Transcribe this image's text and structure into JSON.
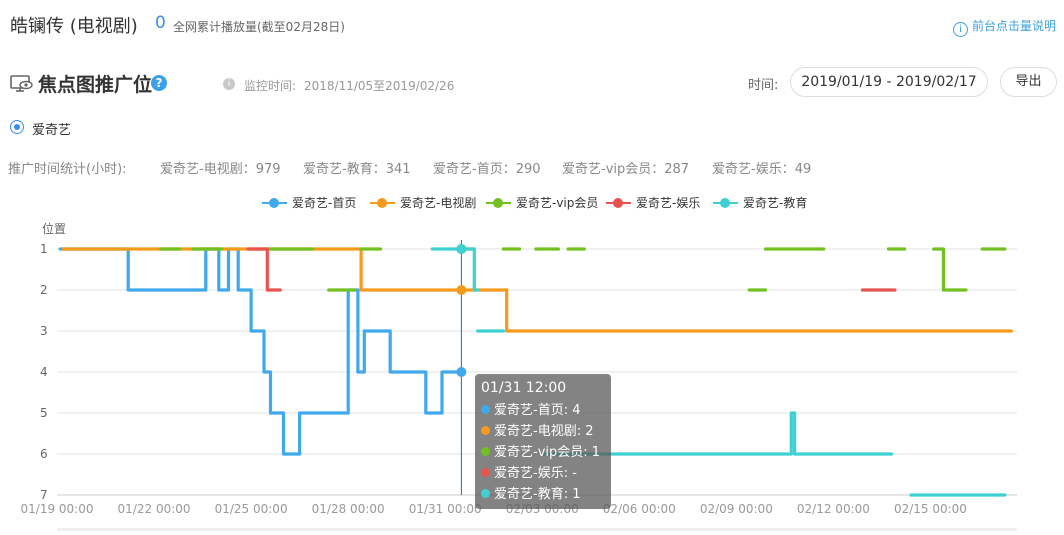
{
  "header": {
    "show_title": "皓镧传 (电视剧)",
    "play_count": "0",
    "play_label": "全网累计播放量(截至02月28日)",
    "explain_link": "前台点击量说明"
  },
  "section": {
    "title": "焦点图推广位",
    "help_icon": "question-icon",
    "monitor_label": "监控时间:",
    "monitor_value": "2018/11/05至2019/02/26",
    "time_label": "时间:",
    "date_range": "2019/01/19 - 2019/02/17",
    "export_label": "导出"
  },
  "platform": {
    "selected": "爱奇艺"
  },
  "stats": {
    "label": "推广时间统计(小时):",
    "items": [
      {
        "text": "爱奇艺-电视剧：979"
      },
      {
        "text": "爱奇艺-教育：341"
      },
      {
        "text": "爱奇艺-首页：290"
      },
      {
        "text": "爱奇艺-vip会员：287"
      },
      {
        "text": "爱奇艺-娱乐：49"
      }
    ]
  },
  "tooltip": {
    "title": "01/31 12:00",
    "rows": [
      {
        "text": "爱奇艺-首页: 4",
        "color": "#3fa9ec"
      },
      {
        "text": "爱奇艺-电视剧: 2",
        "color": "#f59a1b"
      },
      {
        "text": "爱奇艺-vip会员: 1",
        "color": "#73c021"
      },
      {
        "text": "爱奇艺-娱乐: -",
        "color": "#e8524f"
      },
      {
        "text": "爱奇艺-教育: 1",
        "color": "#3dd1d4"
      }
    ]
  },
  "chart_data": {
    "type": "line",
    "ylabel": "位置",
    "y_ticks": [
      "1",
      "2",
      "3",
      "4",
      "5",
      "6",
      "7"
    ],
    "ylim": [
      1,
      7
    ],
    "y_inverted": true,
    "x_ticks": [
      "01/19 00:00",
      "01/22 00:00",
      "01/25 00:00",
      "01/28 00:00",
      "01/31 00:00",
      "02/03 00:00",
      "02/06 00:00",
      "02/09 00:00",
      "02/12 00:00",
      "02/15 00:00"
    ],
    "x_unit": "days since 01/19 00:00",
    "xlim": [
      0,
      29.5
    ],
    "grid": "horizontal",
    "legend_position": "top",
    "hover_x": 12.5,
    "series": [
      {
        "name": "爱奇艺-首页",
        "color": "#3fa9ec",
        "segments": [
          [
            [
              0.1,
              1
            ],
            [
              2.2,
              1
            ],
            [
              2.2,
              2
            ],
            [
              4.6,
              2
            ],
            [
              4.6,
              1
            ],
            [
              5.0,
              1
            ],
            [
              5.0,
              2
            ],
            [
              5.3,
              2
            ],
            [
              5.3,
              1
            ],
            [
              5.6,
              1
            ],
            [
              5.6,
              2
            ],
            [
              6.0,
              2
            ],
            [
              6.0,
              3
            ],
            [
              6.4,
              3
            ],
            [
              6.4,
              4
            ],
            [
              6.6,
              4
            ],
            [
              6.6,
              5
            ],
            [
              7.0,
              5
            ],
            [
              7.0,
              6
            ],
            [
              7.5,
              6
            ],
            [
              7.5,
              5
            ],
            [
              9.0,
              5
            ],
            [
              9.0,
              2
            ],
            [
              9.3,
              2
            ],
            [
              9.3,
              4
            ],
            [
              9.5,
              4
            ],
            [
              9.5,
              3
            ],
            [
              10.3,
              3
            ],
            [
              10.3,
              4
            ],
            [
              11.4,
              4
            ],
            [
              11.4,
              5
            ],
            [
              11.9,
              5
            ],
            [
              11.9,
              4
            ],
            [
              12.5,
              4
            ]
          ]
        ]
      },
      {
        "name": "爱奇艺-电视剧",
        "color": "#f59a1b",
        "segments": [
          [
            [
              0.2,
              1
            ],
            [
              9.4,
              1
            ],
            [
              9.4,
              2
            ],
            [
              13.9,
              2
            ],
            [
              13.9,
              3
            ],
            [
              29.5,
              3
            ]
          ]
        ]
      },
      {
        "name": "爱奇艺-vip会员",
        "color": "#73c021",
        "segments": [
          [
            [
              3.2,
              1
            ],
            [
              3.8,
              1
            ]
          ],
          [
            [
              4.2,
              1
            ],
            [
              5.1,
              1
            ]
          ],
          [
            [
              6.3,
              1
            ],
            [
              7.9,
              1
            ]
          ],
          [
            [
              9.4,
              1
            ],
            [
              10.0,
              1
            ]
          ],
          [
            [
              13.8,
              1
            ],
            [
              14.3,
              1
            ]
          ],
          [
            [
              14.8,
              1
            ],
            [
              15.5,
              1
            ]
          ],
          [
            [
              15.8,
              1
            ],
            [
              16.3,
              1
            ]
          ],
          [
            [
              21.4,
              2
            ],
            [
              21.9,
              2
            ]
          ],
          [
            [
              21.9,
              1
            ],
            [
              23.7,
              1
            ]
          ],
          [
            [
              25.7,
              1
            ],
            [
              26.2,
              1
            ]
          ],
          [
            [
              27.1,
              1
            ],
            [
              27.4,
              1
            ],
            [
              27.4,
              2
            ],
            [
              28.1,
              2
            ]
          ],
          [
            [
              28.6,
              1
            ],
            [
              29.3,
              1
            ]
          ],
          [
            [
              8.4,
              2
            ],
            [
              9.2,
              2
            ]
          ],
          [
            [
              12.4,
              1
            ],
            [
              12.9,
              1
            ]
          ]
        ]
      },
      {
        "name": "爱奇艺-娱乐",
        "color": "#e8524f",
        "segments": [
          [
            [
              5.9,
              1
            ],
            [
              6.5,
              1
            ],
            [
              6.5,
              2
            ],
            [
              6.9,
              2
            ]
          ],
          [
            [
              24.9,
              2
            ],
            [
              25.9,
              2
            ]
          ]
        ]
      },
      {
        "name": "爱奇艺-教育",
        "color": "#3dd1d4",
        "segments": [
          [
            [
              11.6,
              1
            ],
            [
              12.9,
              1
            ],
            [
              12.9,
              2
            ],
            [
              13.0,
              2
            ]
          ],
          [
            [
              13.0,
              3
            ],
            [
              13.8,
              3
            ]
          ],
          [
            [
              15.0,
              6
            ],
            [
              22.7,
              6
            ],
            [
              22.7,
              5
            ],
            [
              22.8,
              5
            ],
            [
              22.8,
              6
            ],
            [
              25.8,
              6
            ]
          ],
          [
            [
              26.4,
              7
            ],
            [
              29.3,
              7
            ]
          ]
        ]
      }
    ]
  },
  "colors": {
    "accent": "#3a8ee6",
    "axis": "#e0e0e0",
    "tick_text": "#999999"
  }
}
